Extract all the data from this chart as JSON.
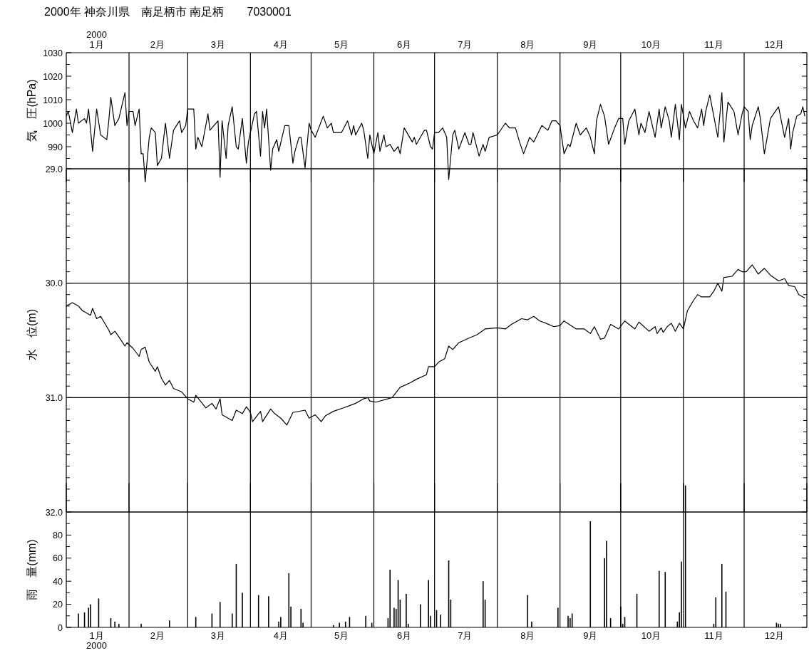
{
  "chart_data": [
    {
      "type": "line",
      "title": "2000年 神奈川県　南足柄市 南足柄　　7030001",
      "ylabel": "気　圧(hPa)",
      "color": "#000000",
      "x": [
        "2000-01-01",
        "2000-01-02",
        "2000-01-04",
        "2000-01-06",
        "2000-01-07",
        "2000-01-10",
        "2000-01-11",
        "2000-01-12",
        "2000-01-14",
        "2000-01-16",
        "2000-01-18",
        "2000-01-21",
        "2000-01-22",
        "2000-01-23",
        "2000-01-25",
        "2000-01-27",
        "2000-01-30",
        "2000-01-31",
        "2000-02-01",
        "2000-02-03",
        "2000-02-04",
        "2000-02-06",
        "2000-02-07",
        "2000-02-08",
        "2000-02-09",
        "2000-02-11",
        "2000-02-12",
        "2000-02-14",
        "2000-02-15",
        "2000-02-17",
        "2000-02-19",
        "2000-02-21",
        "2000-02-23",
        "2000-02-26",
        "2000-02-27",
        "2000-02-29",
        "2000-03-01",
        "2000-03-04",
        "2000-03-05",
        "2000-03-06",
        "2000-03-08",
        "2000-03-11",
        "2000-03-12",
        "2000-03-16",
        "2000-03-17",
        "2000-03-18",
        "2000-03-20",
        "2000-03-21",
        "2000-03-23",
        "2000-03-25",
        "2000-03-26",
        "2000-03-28",
        "2000-03-30",
        "2000-03-31",
        "2000-04-01",
        "2000-04-03",
        "2000-04-04",
        "2000-04-06",
        "2000-04-07",
        "2000-04-08",
        "2000-04-09",
        "2000-04-11",
        "2000-04-12",
        "2000-04-14",
        "2000-04-15",
        "2000-04-18",
        "2000-04-20",
        "2000-04-22",
        "2000-04-23",
        "2000-04-25",
        "2000-04-26",
        "2000-04-28",
        "2000-04-30",
        "2000-05-01",
        "2000-05-03",
        "2000-05-07",
        "2000-05-09",
        "2000-05-11",
        "2000-05-12",
        "2000-05-16",
        "2000-05-19",
        "2000-05-21",
        "2000-05-22",
        "2000-05-23",
        "2000-05-26",
        "2000-05-27",
        "2000-05-29",
        "2000-05-30",
        "2000-06-01",
        "2000-06-03",
        "2000-06-04",
        "2000-06-06",
        "2000-06-07",
        "2000-06-09",
        "2000-06-11",
        "2000-06-13",
        "2000-06-14",
        "2000-06-16",
        "2000-06-20",
        "2000-06-21",
        "2000-06-22",
        "2000-06-24",
        "2000-06-26",
        "2000-06-27",
        "2000-06-29",
        "2000-06-30",
        "2000-07-01",
        "2000-07-03",
        "2000-07-05",
        "2000-07-07",
        "2000-07-08",
        "2000-07-10",
        "2000-07-11",
        "2000-07-13",
        "2000-07-16",
        "2000-07-18",
        "2000-07-19",
        "2000-07-20",
        "2000-07-23",
        "2000-07-25",
        "2000-07-26",
        "2000-07-28",
        "2000-08-01",
        "2000-08-05",
        "2000-08-07",
        "2000-08-10",
        "2000-08-12",
        "2000-08-14",
        "2000-08-17",
        "2000-08-19",
        "2000-08-23",
        "2000-08-26",
        "2000-08-28",
        "2000-08-30",
        "2000-09-01",
        "2000-09-03",
        "2000-09-05",
        "2000-09-06",
        "2000-09-09",
        "2000-09-11",
        "2000-09-14",
        "2000-09-16",
        "2000-09-18",
        "2000-09-19",
        "2000-09-21",
        "2000-09-23",
        "2000-09-25",
        "2000-09-28",
        "2000-09-30",
        "2000-10-02",
        "2000-10-03",
        "2000-10-05",
        "2000-10-08",
        "2000-10-10",
        "2000-10-11",
        "2000-10-13",
        "2000-10-15",
        "2000-10-18",
        "2000-10-20",
        "2000-10-21",
        "2000-10-23",
        "2000-10-25",
        "2000-10-26",
        "2000-10-28",
        "2000-10-30",
        "2000-10-31",
        "2000-11-02",
        "2000-11-04",
        "2000-11-06",
        "2000-11-08",
        "2000-11-10",
        "2000-11-11",
        "2000-11-12",
        "2000-11-14",
        "2000-11-16",
        "2000-11-18",
        "2000-11-20",
        "2000-11-21",
        "2000-11-23",
        "2000-11-26",
        "2000-11-28",
        "2000-11-30",
        "2000-12-01",
        "2000-12-03",
        "2000-12-04",
        "2000-12-05",
        "2000-12-08",
        "2000-12-09",
        "2000-12-11",
        "2000-12-14",
        "2000-12-18",
        "2000-12-21",
        "2000-12-23",
        "2000-12-24",
        "2000-12-25",
        "2000-12-27",
        "2000-12-29",
        "2000-12-30",
        "2000-12-31"
      ],
      "values": [
        1003,
        1005,
        996,
        1006,
        1000,
        1002,
        1000,
        1006,
        988,
        1006,
        995,
        993,
        1001,
        1011,
        999,
        1002,
        1013,
        999,
        1005,
        1005,
        999,
        1006,
        987,
        987,
        975,
        994,
        998,
        996,
        982,
        985,
        1000,
        985,
        997,
        1001,
        996,
        999,
        1006,
        1006,
        989,
        994,
        990,
        1004,
        997,
        1001,
        977,
        1001,
        985,
        999,
        1007,
        990,
        989,
        1002,
        983,
        992,
        996,
        1004,
        1005,
        986,
        1005,
        998,
        1006,
        980,
        989,
        993,
        988,
        999,
        999,
        983,
        988,
        994,
        994,
        981,
        1000,
        997,
        994,
        1003,
        998,
        1000,
        996,
        996,
        1001,
        995,
        999,
        995,
        1000,
        997,
        985,
        995,
        987,
        996,
        988,
        995,
        990,
        991,
        988,
        990,
        987,
        998,
        992,
        994,
        991,
        994,
        997,
        997,
        990,
        989,
        996,
        996,
        998,
        994,
        976,
        995,
        997,
        989,
        996,
        991,
        991,
        996,
        986,
        991,
        988,
        994,
        995,
        1000,
        998,
        998,
        992,
        987,
        994,
        992,
        999,
        997,
        1001,
        1001,
        999,
        987,
        991,
        990,
        1000,
        995,
        998,
        994,
        987,
        1001,
        1008,
        1003,
        991,
        998,
        1002,
        1002,
        991,
        1001,
        1006,
        995,
        1000,
        996,
        1005,
        994,
        1006,
        998,
        1007,
        1001,
        994,
        1008,
        993,
        1008,
        998,
        1005,
        1001,
        998,
        1006,
        999,
        1005,
        1012,
        1003,
        994,
        1013,
        992,
        1009,
        1005,
        995,
        1004,
        1007,
        1005,
        993,
        999,
        1007,
        1002,
        987,
        1002,
        1007,
        994,
        1002,
        989,
        996,
        1003,
        1004,
        1007,
        1003
      ],
      "xlim": [
        "2000-01-01",
        "2001-01-01"
      ],
      "ylim": [
        975,
        1030
      ],
      "xticks": [
        {
          "value": "2000-02-01",
          "label": null
        },
        {
          "value": "2000-03-01",
          "label": null
        },
        {
          "value": "2000-04-01",
          "label": null
        },
        {
          "value": "2000-05-01",
          "label": null
        },
        {
          "value": "2000-06-01",
          "label": null
        },
        {
          "value": "2000-07-01",
          "label": null
        },
        {
          "value": "2000-08-01",
          "label": null
        },
        {
          "value": "2000-09-01",
          "label": null
        },
        {
          "value": "2000-10-01",
          "label": null
        },
        {
          "value": "2000-11-01",
          "label": null
        },
        {
          "value": "2000-12-01",
          "label": null
        }
      ],
      "x2lim": [
        "2000-01-01",
        "2001-01-01"
      ],
      "x2ticks": [
        {
          "value": "2000-01-16",
          "label": "2000\n1月"
        },
        {
          "value": "2000-02-15",
          "label": "2月"
        },
        {
          "value": "2000-03-16",
          "label": "3月"
        },
        {
          "value": "2000-04-16",
          "label": "4月"
        },
        {
          "value": "2000-05-16",
          "label": "5月"
        },
        {
          "value": "2000-06-16",
          "label": "6月"
        },
        {
          "value": "2000-07-16",
          "label": "7月"
        },
        {
          "value": "2000-08-16",
          "label": "8月"
        },
        {
          "value": "2000-09-16",
          "label": "9月"
        },
        {
          "value": "2000-10-16",
          "label": "10月"
        },
        {
          "value": "2000-11-16",
          "label": "11月"
        },
        {
          "value": "2000-12-16",
          "label": "12月"
        }
      ],
      "yticks": [
        990,
        {
          "value": 995,
          "label": null
        },
        1000,
        {
          "value": 1005,
          "label": null
        },
        1010,
        {
          "value": 1015,
          "label": null
        },
        1020,
        {
          "value": 1025,
          "label": null
        },
        1030,
        {
          "value": 985,
          "label": null
        }
      ],
      "grid": "x",
      "tick_labels": "y"
    },
    {
      "type": "line",
      "ylabel": "水　位(m)",
      "color": "#000000",
      "x": [
        "2000-01-01",
        "2000-01-04",
        "2000-01-07",
        "2000-01-09",
        "2000-01-13",
        "2000-01-14",
        "2000-01-16",
        "2000-01-18",
        "2000-01-22",
        "2000-01-23",
        "2000-01-25",
        "2000-01-27",
        "2000-01-30",
        "2000-01-31",
        "2000-02-03",
        "2000-02-06",
        "2000-02-07",
        "2000-02-09",
        "2000-02-11",
        "2000-02-14",
        "2000-02-15",
        "2000-02-17",
        "2000-02-19",
        "2000-02-21",
        "2000-02-23",
        "2000-02-27",
        "2000-03-01",
        "2000-03-04",
        "2000-03-05",
        "2000-03-10",
        "2000-03-13",
        "2000-03-15",
        "2000-03-17",
        "2000-03-18",
        "2000-03-23",
        "2000-03-25",
        "2000-03-28",
        "2000-03-30",
        "2000-04-01",
        "2000-04-02",
        "2000-04-06",
        "2000-04-07",
        "2000-04-11",
        "2000-04-13",
        "2000-04-16",
        "2000-04-19",
        "2000-04-22",
        "2000-04-28",
        "2000-04-30",
        "2000-05-03",
        "2000-05-06",
        "2000-05-08",
        "2000-05-12",
        "2000-05-17",
        "2000-05-20",
        "2000-05-23",
        "2000-05-27",
        "2000-05-29",
        "2000-05-30",
        "2000-06-02",
        "2000-06-10",
        "2000-06-14",
        "2000-06-19",
        "2000-06-22",
        "2000-06-27",
        "2000-06-28",
        "2000-07-01",
        "2000-07-03",
        "2000-07-06",
        "2000-07-08",
        "2000-07-10",
        "2000-07-13",
        "2000-07-18",
        "2000-07-22",
        "2000-07-26",
        "2000-08-01",
        "2000-08-05",
        "2000-08-08",
        "2000-08-13",
        "2000-08-16",
        "2000-08-19",
        "2000-08-22",
        "2000-08-25",
        "2000-08-29",
        "2000-09-01",
        "2000-09-03",
        "2000-09-09",
        "2000-09-13",
        "2000-09-16",
        "2000-09-18",
        "2000-09-21",
        "2000-09-23",
        "2000-09-26",
        "2000-09-30",
        "2000-10-03",
        "2000-10-08",
        "2000-10-10",
        "2000-10-15",
        "2000-10-18",
        "2000-10-19",
        "2000-10-21",
        "2000-10-22",
        "2000-10-24",
        "2000-10-26",
        "2000-10-28",
        "2000-10-30",
        "2000-11-01",
        "2000-11-03",
        "2000-11-06",
        "2000-11-08",
        "2000-11-10",
        "2000-11-14",
        "2000-11-16",
        "2000-11-18",
        "2000-11-20",
        "2000-11-21",
        "2000-11-25",
        "2000-11-28",
        "2000-11-30",
        "2000-12-02",
        "2000-12-05",
        "2000-12-08",
        "2000-12-11",
        "2000-12-14",
        "2000-12-18",
        "2000-12-21",
        "2000-12-23",
        "2000-12-26",
        "2000-12-28",
        "2000-12-31"
      ],
      "values": [
        30.2,
        30.17,
        30.2,
        30.24,
        30.28,
        30.22,
        30.31,
        30.29,
        30.41,
        30.45,
        30.42,
        30.47,
        30.55,
        30.52,
        30.57,
        30.64,
        30.58,
        30.56,
        30.69,
        30.77,
        30.73,
        30.83,
        30.89,
        30.85,
        30.92,
        30.95,
        31.01,
        31.04,
        30.98,
        31.09,
        31.05,
        31.1,
        31.01,
        31.15,
        31.2,
        31.11,
        31.14,
        31.08,
        31.13,
        31.21,
        31.12,
        31.21,
        31.1,
        31.14,
        31.18,
        31.24,
        31.13,
        31.11,
        31.18,
        31.15,
        31.21,
        31.16,
        31.12,
        31.09,
        31.07,
        31.05,
        31.01,
        31.0,
        31.03,
        31.04,
        31.0,
        30.91,
        30.87,
        30.84,
        30.8,
        30.73,
        30.73,
        30.69,
        30.66,
        30.55,
        30.58,
        30.52,
        30.48,
        30.45,
        30.4,
        30.39,
        30.4,
        30.36,
        30.31,
        30.32,
        30.29,
        30.33,
        30.35,
        30.38,
        30.37,
        30.33,
        30.4,
        30.4,
        30.44,
        30.38,
        30.49,
        30.48,
        30.36,
        30.4,
        30.33,
        30.4,
        30.34,
        30.42,
        30.38,
        30.44,
        30.39,
        30.43,
        30.38,
        30.35,
        30.42,
        30.35,
        30.4,
        30.24,
        30.15,
        30.1,
        30.12,
        30.12,
        30.07,
        30.0,
        30.07,
        29.95,
        29.94,
        29.88,
        29.9,
        29.9,
        29.84,
        29.92,
        29.87,
        29.93,
        29.98,
        29.96,
        30.02,
        30.03,
        30.1,
        30.13
      ],
      "xlim": [
        "2000-01-01",
        "2001-01-01"
      ],
      "ylim": [
        32.0,
        29.0
      ],
      "xticks": [
        {
          "value": "2000-02-01",
          "label": null
        },
        {
          "value": "2000-03-01",
          "label": null
        },
        {
          "value": "2000-04-01",
          "label": null
        },
        {
          "value": "2000-05-01",
          "label": null
        },
        {
          "value": "2000-06-01",
          "label": null
        },
        {
          "value": "2000-07-01",
          "label": null
        },
        {
          "value": "2000-08-01",
          "label": null
        },
        {
          "value": "2000-09-01",
          "label": null
        },
        {
          "value": "2000-10-01",
          "label": null
        },
        {
          "value": "2000-11-01",
          "label": null
        },
        {
          "value": "2000-12-01",
          "label": null
        }
      ],
      "yticks": [
        {
          "value": 29.0,
          "label": "29.0"
        },
        {
          "value": 29.1,
          "label": null
        },
        {
          "value": 29.2,
          "label": null
        },
        {
          "value": 29.3,
          "label": null
        },
        {
          "value": 29.4,
          "label": null
        },
        {
          "value": 29.5,
          "label": null
        },
        {
          "value": 29.6,
          "label": null
        },
        {
          "value": 29.7,
          "label": null
        },
        {
          "value": 29.8,
          "label": null
        },
        {
          "value": 29.9,
          "label": null
        },
        {
          "value": 30.0,
          "label": "30.0"
        },
        {
          "value": 30.1,
          "label": null
        },
        {
          "value": 30.2,
          "label": null
        },
        {
          "value": 30.3,
          "label": null
        },
        {
          "value": 30.4,
          "label": null
        },
        {
          "value": 30.5,
          "label": null
        },
        {
          "value": 30.6,
          "label": null
        },
        {
          "value": 30.7,
          "label": null
        },
        {
          "value": 30.8,
          "label": null
        },
        {
          "value": 30.9,
          "label": null
        },
        {
          "value": 31.0,
          "label": "31.0"
        },
        {
          "value": 31.1,
          "label": null
        },
        {
          "value": 31.2,
          "label": null
        },
        {
          "value": 31.3,
          "label": null
        },
        {
          "value": 31.4,
          "label": null
        },
        {
          "value": 31.5,
          "label": null
        },
        {
          "value": 31.6,
          "label": null
        },
        {
          "value": 31.7,
          "label": null
        },
        {
          "value": 31.8,
          "label": null
        },
        {
          "value": 31.9,
          "label": null
        },
        {
          "value": 32.0,
          "label": "32.0"
        }
      ],
      "grid": true,
      "tick_labels": "y"
    },
    {
      "type": "bar",
      "ylabel": "雨　量(mm)",
      "color": "#000000",
      "x": [
        "2000-01-07",
        "2000-01-10",
        "2000-01-12",
        "2000-01-13",
        "2000-01-17",
        "2000-01-23",
        "2000-01-25",
        "2000-01-27",
        "2000-02-07",
        "2000-02-21",
        "2000-03-05",
        "2000-03-13",
        "2000-03-17",
        "2000-03-23",
        "2000-03-25",
        "2000-03-28",
        "2000-04-05",
        "2000-04-10",
        "2000-04-15",
        "2000-04-16",
        "2000-04-20",
        "2000-04-21",
        "2000-04-26",
        "2000-04-27",
        "2000-05-12",
        "2000-05-15",
        "2000-05-18",
        "2000-05-20",
        "2000-05-28",
        "2000-05-31",
        "2000-06-08",
        "2000-06-09",
        "2000-06-11",
        "2000-06-12",
        "2000-06-13",
        "2000-06-14",
        "2000-06-17",
        "2000-06-18",
        "2000-06-24",
        "2000-06-28",
        "2000-06-29",
        "2000-07-02",
        "2000-07-04",
        "2000-07-08",
        "2000-07-09",
        "2000-07-25",
        "2000-07-26",
        "2000-08-16",
        "2000-08-18",
        "2000-08-31",
        "2000-09-05",
        "2000-09-06",
        "2000-09-07",
        "2000-09-16",
        "2000-09-23",
        "2000-09-24",
        "2000-09-26",
        "2000-10-01",
        "2000-10-02",
        "2000-10-03",
        "2000-10-09",
        "2000-10-20",
        "2000-10-23",
        "2000-10-29",
        "2000-10-30",
        "2000-10-31",
        "2000-11-02",
        "2000-11-16",
        "2000-11-17",
        "2000-11-20",
        "2000-11-22",
        "2000-12-17",
        "2000-12-18",
        "2000-12-19"
      ],
      "values": [
        12,
        13,
        17,
        20,
        25,
        8,
        5,
        3,
        3,
        6,
        9,
        12,
        22,
        12,
        55,
        30,
        28,
        27,
        5,
        9,
        47,
        18,
        16,
        4,
        2,
        4,
        5,
        9,
        10,
        4,
        8,
        50,
        17,
        16,
        41,
        24,
        29,
        3,
        20,
        41,
        10,
        15,
        11,
        58,
        24,
        40,
        24,
        28,
        5,
        17,
        10,
        8,
        12,
        92,
        60,
        75,
        8,
        18,
        3,
        9,
        29,
        49,
        48,
        5,
        13,
        57,
        123,
        3,
        26,
        55,
        31,
        4,
        3,
        3
      ],
      "xlim": [
        "2000-01-01",
        "2001-01-01"
      ],
      "ylim": [
        0,
        125
      ],
      "xticks": [
        {
          "value": "2000-02-01",
          "label": null
        },
        {
          "value": "2000-03-01",
          "label": null
        },
        {
          "value": "2000-04-01",
          "label": null
        },
        {
          "value": "2000-05-01",
          "label": null
        },
        {
          "value": "2000-06-01",
          "label": null
        },
        {
          "value": "2000-07-01",
          "label": null
        },
        {
          "value": "2000-08-01",
          "label": null
        },
        {
          "value": "2000-09-01",
          "label": null
        },
        {
          "value": "2000-10-01",
          "label": null
        },
        {
          "value": "2000-11-01",
          "label": null
        },
        {
          "value": "2000-12-01",
          "label": null
        },
        {
          "value": "2000-01-16",
          "label": "1月\n2000"
        },
        {
          "value": "2000-02-15",
          "label": "2月"
        },
        {
          "value": "2000-03-16",
          "label": "3月"
        },
        {
          "value": "2000-04-16",
          "label": "4月"
        },
        {
          "value": "2000-05-16",
          "label": "5月"
        },
        {
          "value": "2000-06-16",
          "label": "6月"
        },
        {
          "value": "2000-07-16",
          "label": "7月"
        },
        {
          "value": "2000-08-16",
          "label": "8月"
        },
        {
          "value": "2000-09-16",
          "label": "9月"
        },
        {
          "value": "2000-10-16",
          "label": "10月"
        },
        {
          "value": "2000-11-16",
          "label": "11月"
        },
        {
          "value": "2000-12-16",
          "label": "12月"
        }
      ],
      "yticks": [
        0,
        {
          "value": 10,
          "label": null
        },
        20,
        {
          "value": 30,
          "label": null
        },
        40,
        {
          "value": 50,
          "label": null
        },
        60,
        {
          "value": 70,
          "label": null
        },
        80,
        {
          "value": 90,
          "label": null
        }
      ],
      "grid": "x"
    }
  ]
}
